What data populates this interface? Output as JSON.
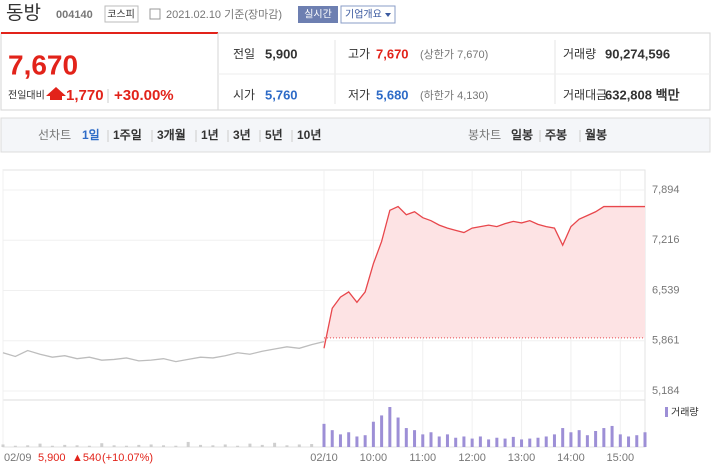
{
  "header": {
    "name": "동방",
    "code": "004140",
    "market": "코스피",
    "date": "2021.02.10 기준(장마감)",
    "realtime": "실시간",
    "company": "기업개요"
  },
  "quote": {
    "price": "7,670",
    "change_label": "전일대비",
    "change": "1,770",
    "rate": "+30.00%",
    "stats": [
      {
        "label": "전일",
        "value": "5,900"
      },
      {
        "label": "고가",
        "value": "7,670",
        "note": "(상한가 7,670)"
      },
      {
        "label": "거래량",
        "value": "90,274,596"
      },
      {
        "label": "시가",
        "value": "5,760"
      },
      {
        "label": "저가",
        "value": "5,680",
        "note": "(하한가 4,130)"
      },
      {
        "label": "거래대금",
        "value": "632,808 백만"
      }
    ]
  },
  "tabs": {
    "line_label": "선차트",
    "line_items": [
      "1일",
      "1주일",
      "3개월",
      "1년",
      "3년",
      "5년",
      "10년"
    ],
    "candle_label": "봉차트",
    "candle_items": [
      "일봉",
      "주봉",
      "월봉"
    ]
  },
  "chart_data": {
    "type": "line",
    "xlim": [
      0,
      780
    ],
    "ylim": [
      5063,
      8163
    ],
    "xticks": [
      {
        "value": 0,
        "label": "02/09"
      },
      {
        "value": 390,
        "label": "02/10"
      },
      {
        "value": 450,
        "label": "10:00"
      },
      {
        "value": 510,
        "label": "11:00"
      },
      {
        "value": 570,
        "label": "12:00"
      },
      {
        "value": 630,
        "label": "13:00"
      },
      {
        "value": 690,
        "label": "14:00"
      },
      {
        "value": 750,
        "label": "15:00"
      }
    ],
    "yticks": [
      {
        "value": 5184,
        "label": "5,184"
      },
      {
        "value": 5861,
        "label": "5,861"
      },
      {
        "value": 6539,
        "label": "6,539"
      },
      {
        "value": 7216,
        "label": "7,216"
      },
      {
        "value": 7894,
        "label": "7,894"
      }
    ],
    "reference_line": 5900,
    "series": [
      {
        "color": "#bdbdbd",
        "x": [
          0,
          15,
          30,
          45,
          60,
          75,
          90,
          105,
          120,
          135,
          150,
          165,
          180,
          195,
          210,
          225,
          240,
          255,
          270,
          285,
          300,
          315,
          330,
          345,
          360,
          375,
          390
        ],
        "values": [
          5700,
          5650,
          5730,
          5680,
          5640,
          5660,
          5620,
          5640,
          5600,
          5610,
          5630,
          5590,
          5600,
          5620,
          5580,
          5610,
          5640,
          5630,
          5660,
          5700,
          5680,
          5720,
          5750,
          5780,
          5760,
          5810,
          5850
        ]
      },
      {
        "color": "#e8474c",
        "area_color": "#fde3e4",
        "x": [
          390,
          400,
          410,
          420,
          430,
          440,
          450,
          460,
          470,
          480,
          490,
          500,
          510,
          520,
          530,
          540,
          550,
          560,
          570,
          580,
          590,
          600,
          610,
          620,
          630,
          640,
          650,
          660,
          670,
          680,
          690,
          700,
          710,
          720,
          730,
          740,
          750,
          760,
          770,
          780
        ],
        "values": [
          5760,
          6300,
          6450,
          6520,
          6380,
          6520,
          6900,
          7200,
          7620,
          7670,
          7560,
          7600,
          7520,
          7480,
          7420,
          7380,
          7350,
          7320,
          7380,
          7400,
          7420,
          7400,
          7440,
          7470,
          7450,
          7480,
          7430,
          7400,
          7380,
          7150,
          7400,
          7500,
          7550,
          7600,
          7670,
          7670,
          7670,
          7670,
          7670,
          7670
        ]
      }
    ],
    "volume_label": "거래량",
    "volume": [
      {
        "color": "#cfcfcf",
        "values": [
          6,
          3,
          4,
          8,
          3,
          5,
          4,
          3,
          9,
          4,
          3,
          5,
          6,
          4,
          3,
          12,
          5,
          4,
          6,
          3,
          8,
          5,
          10,
          4,
          6,
          7,
          9
        ]
      },
      {
        "color": "#9d8fd6",
        "values": [
          55,
          40,
          30,
          35,
          25,
          28,
          60,
          75,
          95,
          70,
          45,
          40,
          30,
          35,
          25,
          30,
          22,
          25,
          20,
          25,
          18,
          22,
          20,
          24,
          18,
          20,
          22,
          25,
          30,
          45,
          35,
          40,
          28,
          38,
          45,
          50,
          30,
          25,
          28,
          35
        ]
      }
    ],
    "info": {
      "date": "02/09",
      "price": "5,900",
      "change": "▲540",
      "rate": "(+10.07%)"
    }
  }
}
